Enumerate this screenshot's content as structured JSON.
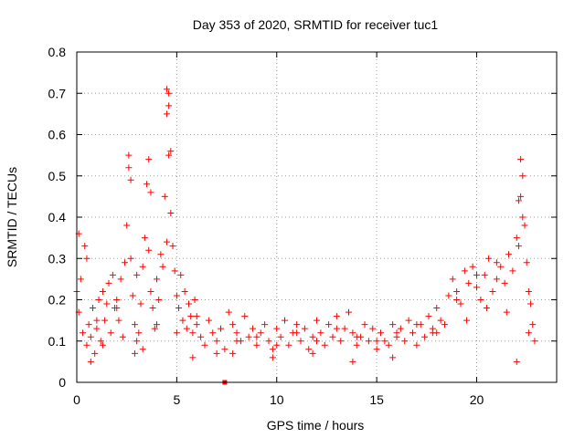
{
  "chart_data": {
    "type": "scatter",
    "title": "Day 353 of 2020, SRMTID for receiver tuc1",
    "xlabel": "GPS time / hours",
    "ylabel": "SRMTID / TECUs",
    "xlim": [
      0,
      24
    ],
    "ylim": [
      0,
      0.8
    ],
    "xticks": [
      0,
      5,
      10,
      15,
      20
    ],
    "yticks": [
      0,
      0.1,
      0.2,
      0.3,
      0.4,
      0.5,
      0.6,
      0.7,
      0.8
    ],
    "grid": true,
    "marker": "+",
    "marker_color": "#ff0000",
    "series": [
      {
        "name": "tuc1",
        "x": [
          0.0,
          0.1,
          0.2,
          0.3,
          0.4,
          0.5,
          0.6,
          0.7,
          0.8,
          0.9,
          1.0,
          1.1,
          1.2,
          1.3,
          1.4,
          1.5,
          1.6,
          1.7,
          1.8,
          1.9,
          2.0,
          2.1,
          2.2,
          2.3,
          2.4,
          2.5,
          2.6,
          2.7,
          2.8,
          2.9,
          3.0,
          3.1,
          3.2,
          3.3,
          3.4,
          3.5,
          3.6,
          3.7,
          3.8,
          3.9,
          4.0,
          4.1,
          4.2,
          4.3,
          4.4,
          4.5,
          4.6,
          4.7,
          4.8,
          4.9,
          5.0,
          5.1,
          5.2,
          5.3,
          5.4,
          5.5,
          5.6,
          5.7,
          5.8,
          5.9,
          6.0,
          6.2,
          6.4,
          6.6,
          6.8,
          7.0,
          7.2,
          7.4,
          7.6,
          7.8,
          8.0,
          8.2,
          8.4,
          8.6,
          8.8,
          9.0,
          9.2,
          9.4,
          9.6,
          9.8,
          10.0,
          10.2,
          10.4,
          10.6,
          10.8,
          11.0,
          11.2,
          11.4,
          11.6,
          11.8,
          12.0,
          12.2,
          12.4,
          12.6,
          12.8,
          13.0,
          13.2,
          13.4,
          13.6,
          13.8,
          14.0,
          14.2,
          14.4,
          14.6,
          14.8,
          15.0,
          15.2,
          15.4,
          15.6,
          15.8,
          16.0,
          16.2,
          16.4,
          16.6,
          16.8,
          17.0,
          17.2,
          17.4,
          17.6,
          17.8,
          18.0,
          18.2,
          18.4,
          18.6,
          18.8,
          19.0,
          19.2,
          19.4,
          19.6,
          19.8,
          20.0,
          20.2,
          20.4,
          20.6,
          20.8,
          21.0,
          21.2,
          21.4,
          21.6,
          21.8,
          22.0,
          22.1,
          22.2,
          22.3,
          22.4,
          22.5,
          22.6,
          22.7,
          22.8,
          22.9,
          0.1,
          0.5,
          2.6,
          2.7,
          3.6,
          3.7,
          4.5,
          4.6,
          4.6,
          4.5,
          4.7,
          22.2,
          22.3,
          22.1,
          1.0,
          2.0,
          3.0,
          4.0,
          5.0,
          6.0,
          7.0,
          8.0,
          9.0,
          10.0,
          11.0,
          12.0,
          13.0,
          14.0,
          15.0,
          16.0,
          17.0,
          18.0,
          19.0,
          20.0,
          21.0,
          22.0,
          0.7,
          1.3,
          2.9,
          3.3,
          5.8,
          7.8,
          9.8,
          11.8,
          13.8,
          15.8,
          17.8,
          19.5,
          20.5,
          21.5,
          22.6
        ],
        "y": [
          0.22,
          0.17,
          0.25,
          0.12,
          0.33,
          0.09,
          0.14,
          0.11,
          0.18,
          0.07,
          0.13,
          0.2,
          0.1,
          0.22,
          0.15,
          0.19,
          0.24,
          0.12,
          0.26,
          0.18,
          0.2,
          0.15,
          0.25,
          0.11,
          0.29,
          0.38,
          0.52,
          0.3,
          0.21,
          0.14,
          0.26,
          0.12,
          0.19,
          0.28,
          0.35,
          0.48,
          0.32,
          0.22,
          0.18,
          0.13,
          0.25,
          0.2,
          0.31,
          0.28,
          0.45,
          0.34,
          0.55,
          0.41,
          0.33,
          0.27,
          0.21,
          0.18,
          0.26,
          0.15,
          0.22,
          0.13,
          0.19,
          0.16,
          0.12,
          0.2,
          0.14,
          0.11,
          0.09,
          0.15,
          0.12,
          0.1,
          0.13,
          0.08,
          0.17,
          0.14,
          0.12,
          0.1,
          0.16,
          0.11,
          0.13,
          0.09,
          0.12,
          0.14,
          0.1,
          0.08,
          0.13,
          0.11,
          0.15,
          0.09,
          0.12,
          0.14,
          0.1,
          0.13,
          0.08,
          0.11,
          0.15,
          0.12,
          0.09,
          0.14,
          0.11,
          0.16,
          0.1,
          0.13,
          0.17,
          0.12,
          0.09,
          0.11,
          0.14,
          0.1,
          0.13,
          0.08,
          0.12,
          0.1,
          0.09,
          0.14,
          0.11,
          0.13,
          0.1,
          0.15,
          0.12,
          0.09,
          0.14,
          0.11,
          0.16,
          0.13,
          0.12,
          0.15,
          0.14,
          0.21,
          0.25,
          0.22,
          0.19,
          0.27,
          0.24,
          0.28,
          0.23,
          0.2,
          0.26,
          0.3,
          0.22,
          0.25,
          0.28,
          0.24,
          0.31,
          0.27,
          0.35,
          0.33,
          0.45,
          0.4,
          0.38,
          0.29,
          0.22,
          0.19,
          0.14,
          0.1,
          0.36,
          0.3,
          0.55,
          0.49,
          0.54,
          0.46,
          0.71,
          0.7,
          0.67,
          0.65,
          0.56,
          0.54,
          0.5,
          0.44,
          0.15,
          0.18,
          0.1,
          0.14,
          0.12,
          0.16,
          0.07,
          0.1,
          0.11,
          0.09,
          0.12,
          0.1,
          0.13,
          0.11,
          0.1,
          0.12,
          0.14,
          0.18,
          0.2,
          0.26,
          0.29,
          0.05,
          0.05,
          0.09,
          0.07,
          0.08,
          0.06,
          0.07,
          0.06,
          0.07,
          0.05,
          0.06,
          0.12,
          0.15,
          0.18,
          0.17,
          0.12
        ]
      }
    ],
    "outlier_marker": {
      "x": 7.4,
      "y": 0.0
    }
  }
}
